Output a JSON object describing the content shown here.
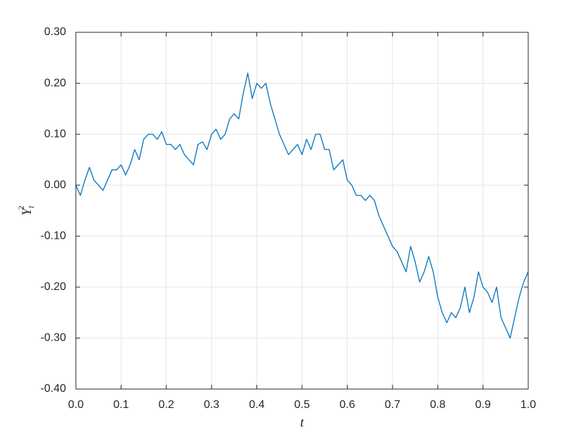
{
  "chart_data": {
    "type": "line",
    "xlabel": "t",
    "ylabel": "Y",
    "ylabel_subscript": "t",
    "ylabel_superscript": "2",
    "x": [
      0,
      0.01,
      0.02,
      0.03,
      0.04,
      0.05,
      0.06,
      0.07,
      0.08,
      0.09,
      0.1,
      0.11,
      0.12,
      0.13,
      0.14,
      0.15,
      0.16,
      0.17,
      0.18,
      0.19,
      0.2,
      0.21,
      0.22,
      0.23,
      0.24,
      0.25,
      0.26,
      0.27,
      0.28,
      0.29,
      0.3,
      0.31,
      0.32,
      0.33,
      0.34,
      0.35,
      0.36,
      0.37,
      0.38,
      0.39,
      0.4,
      0.41,
      0.42,
      0.43,
      0.44,
      0.45,
      0.46,
      0.47,
      0.48,
      0.49,
      0.5,
      0.51,
      0.52,
      0.53,
      0.54,
      0.55,
      0.56,
      0.57,
      0.58,
      0.59,
      0.6,
      0.61,
      0.62,
      0.63,
      0.64,
      0.65,
      0.66,
      0.67,
      0.68,
      0.69,
      0.7,
      0.71,
      0.72,
      0.73,
      0.74,
      0.75,
      0.76,
      0.77,
      0.78,
      0.79,
      0.8,
      0.81,
      0.82,
      0.83,
      0.84,
      0.85,
      0.86,
      0.87,
      0.88,
      0.89,
      0.9,
      0.91,
      0.92,
      0.93,
      0.94,
      0.95,
      0.96,
      0.97,
      0.98,
      0.99,
      1
    ],
    "series": [
      {
        "color": "#0072bd",
        "values": [
          0,
          -0.02,
          0.01,
          0.035,
          0.01,
          0,
          -0.01,
          0.01,
          0.03,
          0.03,
          0.04,
          0.02,
          0.04,
          0.07,
          0.05,
          0.09,
          0.1,
          0.1,
          0.09,
          0.105,
          0.08,
          0.08,
          0.07,
          0.08,
          0.06,
          0.05,
          0.04,
          0.08,
          0.085,
          0.07,
          0.1,
          0.11,
          0.09,
          0.1,
          0.13,
          0.14,
          0.13,
          0.18,
          0.22,
          0.17,
          0.2,
          0.19,
          0.2,
          0.16,
          0.13,
          0.1,
          0.08,
          0.06,
          0.07,
          0.08,
          0.06,
          0.09,
          0.07,
          0.1,
          0.1,
          0.07,
          0.07,
          0.03,
          0.04,
          0.05,
          0.01,
          0,
          -0.02,
          -0.02,
          -0.03,
          -0.02,
          -0.03,
          -0.06,
          -0.08,
          -0.1,
          -0.12,
          -0.13,
          -0.15,
          -0.17,
          -0.12,
          -0.15,
          -0.19,
          -0.17,
          -0.14,
          -0.17,
          -0.22,
          -0.25,
          -0.27,
          -0.25,
          -0.26,
          -0.24,
          -0.2,
          -0.25,
          -0.22,
          -0.17,
          -0.2,
          -0.21,
          -0.23,
          -0.2,
          -0.26,
          -0.28,
          -0.3,
          -0.26,
          -0.22,
          -0.19,
          -0.17
        ]
      }
    ],
    "xlim": [
      0,
      1
    ],
    "ylim": [
      -0.4,
      0.3
    ],
    "xticks": [
      {
        "value": 0,
        "label": "0.0"
      },
      {
        "value": 0.1,
        "label": "0.1"
      },
      {
        "value": 0.2,
        "label": "0.2"
      },
      {
        "value": 0.3,
        "label": "0.3"
      },
      {
        "value": 0.4,
        "label": "0.4"
      },
      {
        "value": 0.5,
        "label": "0.5"
      },
      {
        "value": 0.6,
        "label": "0.6"
      },
      {
        "value": 0.7,
        "label": "0.7"
      },
      {
        "value": 0.8,
        "label": "0.8"
      },
      {
        "value": 0.9,
        "label": "0.9"
      },
      {
        "value": 1,
        "label": "1.0"
      }
    ],
    "yticks": [
      {
        "value": -0.4,
        "label": "-0.40"
      },
      {
        "value": -0.3,
        "label": "-0.30"
      },
      {
        "value": -0.2,
        "label": "-0.20"
      },
      {
        "value": -0.1,
        "label": "-0.10"
      },
      {
        "value": 0,
        "label": "0.00"
      },
      {
        "value": 0.1,
        "label": "0.10"
      },
      {
        "value": 0.2,
        "label": "0.20"
      },
      {
        "value": 0.3,
        "label": "0.30"
      }
    ],
    "grid": true
  }
}
